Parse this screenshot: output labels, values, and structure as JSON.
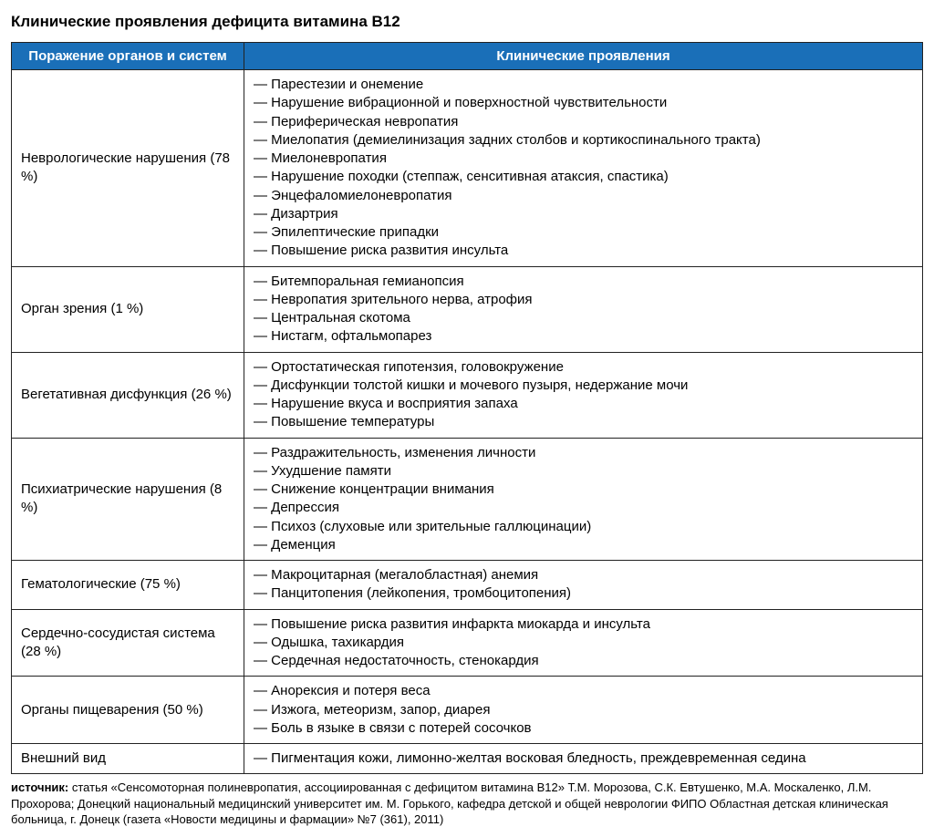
{
  "title": "Клинические проявления дефицита витамина В12",
  "table": {
    "header_bg": "#1a6fb8",
    "header_fg": "#ffffff",
    "border_color": "#222222",
    "columns": [
      "Поражение органов и систем",
      "Клинические проявления"
    ],
    "rows": [
      {
        "system": "Неврологические нарушения (78 %)",
        "items": [
          "Парестезии и онемение",
          "Нарушение вибрационной и поверхностной чувствительности",
          "Периферическая невропатия",
          "Миелопатия (демиелинизация задних столбов и кортикоспинального тракта)",
          "Миелоневропатия",
          "Нарушение походки (степпаж, сенситивная атаксия, спастика)",
          "Энцефаломиелоневропатия",
          "Дизартрия",
          "Эпилептические припадки",
          "Повышение риска развития инсульта"
        ]
      },
      {
        "system": "Орган зрения (1 %)",
        "items": [
          "Битемпоральная гемианопсия",
          "Невропатия зрительного нерва, атрофия",
          "Центральная скотома",
          "Нистагм, офтальмопарез"
        ]
      },
      {
        "system": "Вегетативная дисфункция (26 %)",
        "items": [
          "Ортостатическая гипотензия, головокружение",
          "Дисфункции толстой кишки и мочевого пузыря, недержание мочи",
          "Нарушение вкуса и восприятия запаха",
          "Повышение температуры"
        ]
      },
      {
        "system": "Психиатрические нарушения (8 %)",
        "items": [
          "Раздражительность, изменения личности",
          "Ухудшение памяти",
          "Снижение концентрации внимания",
          "Депрессия",
          "Психоз (слуховые или зрительные галлюцинации)",
          "Деменция"
        ]
      },
      {
        "system": "Гематологические (75 %)",
        "items": [
          "Макроцитарная (мегалобластная) анемия",
          "Панцитопения (лейкопения, тромбоцитопения)"
        ]
      },
      {
        "system": "Сердечно-сосудистая система (28 %)",
        "items": [
          "Повышение риска развития инфаркта миокарда и инсульта",
          "Одышка, тахикардия",
          "Сердечная недостаточность, стенокардия"
        ]
      },
      {
        "system": "Органы пищеварения (50 %)",
        "items": [
          "Анорексия и потеря веса",
          "Изжога, метеоризм, запор, диарея",
          "Боль в языке в связи с потерей сосочков"
        ]
      },
      {
        "system": "Внешний вид",
        "items": [
          "Пигментация кожи, лимонно-желтая восковая бледность, преждевременная седина"
        ]
      }
    ]
  },
  "source": {
    "label": "источник:",
    "text": " статья «Сенсомоторная полиневропатия, ассоциированная с дефицитом витамина В12» Т.М. Морозова, С.К. Евтушенко, М.А. Москаленко, Л.М. Прохорова; Донецкий национальный медицинский университет им. М. Горького, кафедра детской и общей неврологии ФИПО Областная детская клиническая больница, г. Донецк (газета «Новости медицины и фармации» №7 (361), 2011)"
  }
}
